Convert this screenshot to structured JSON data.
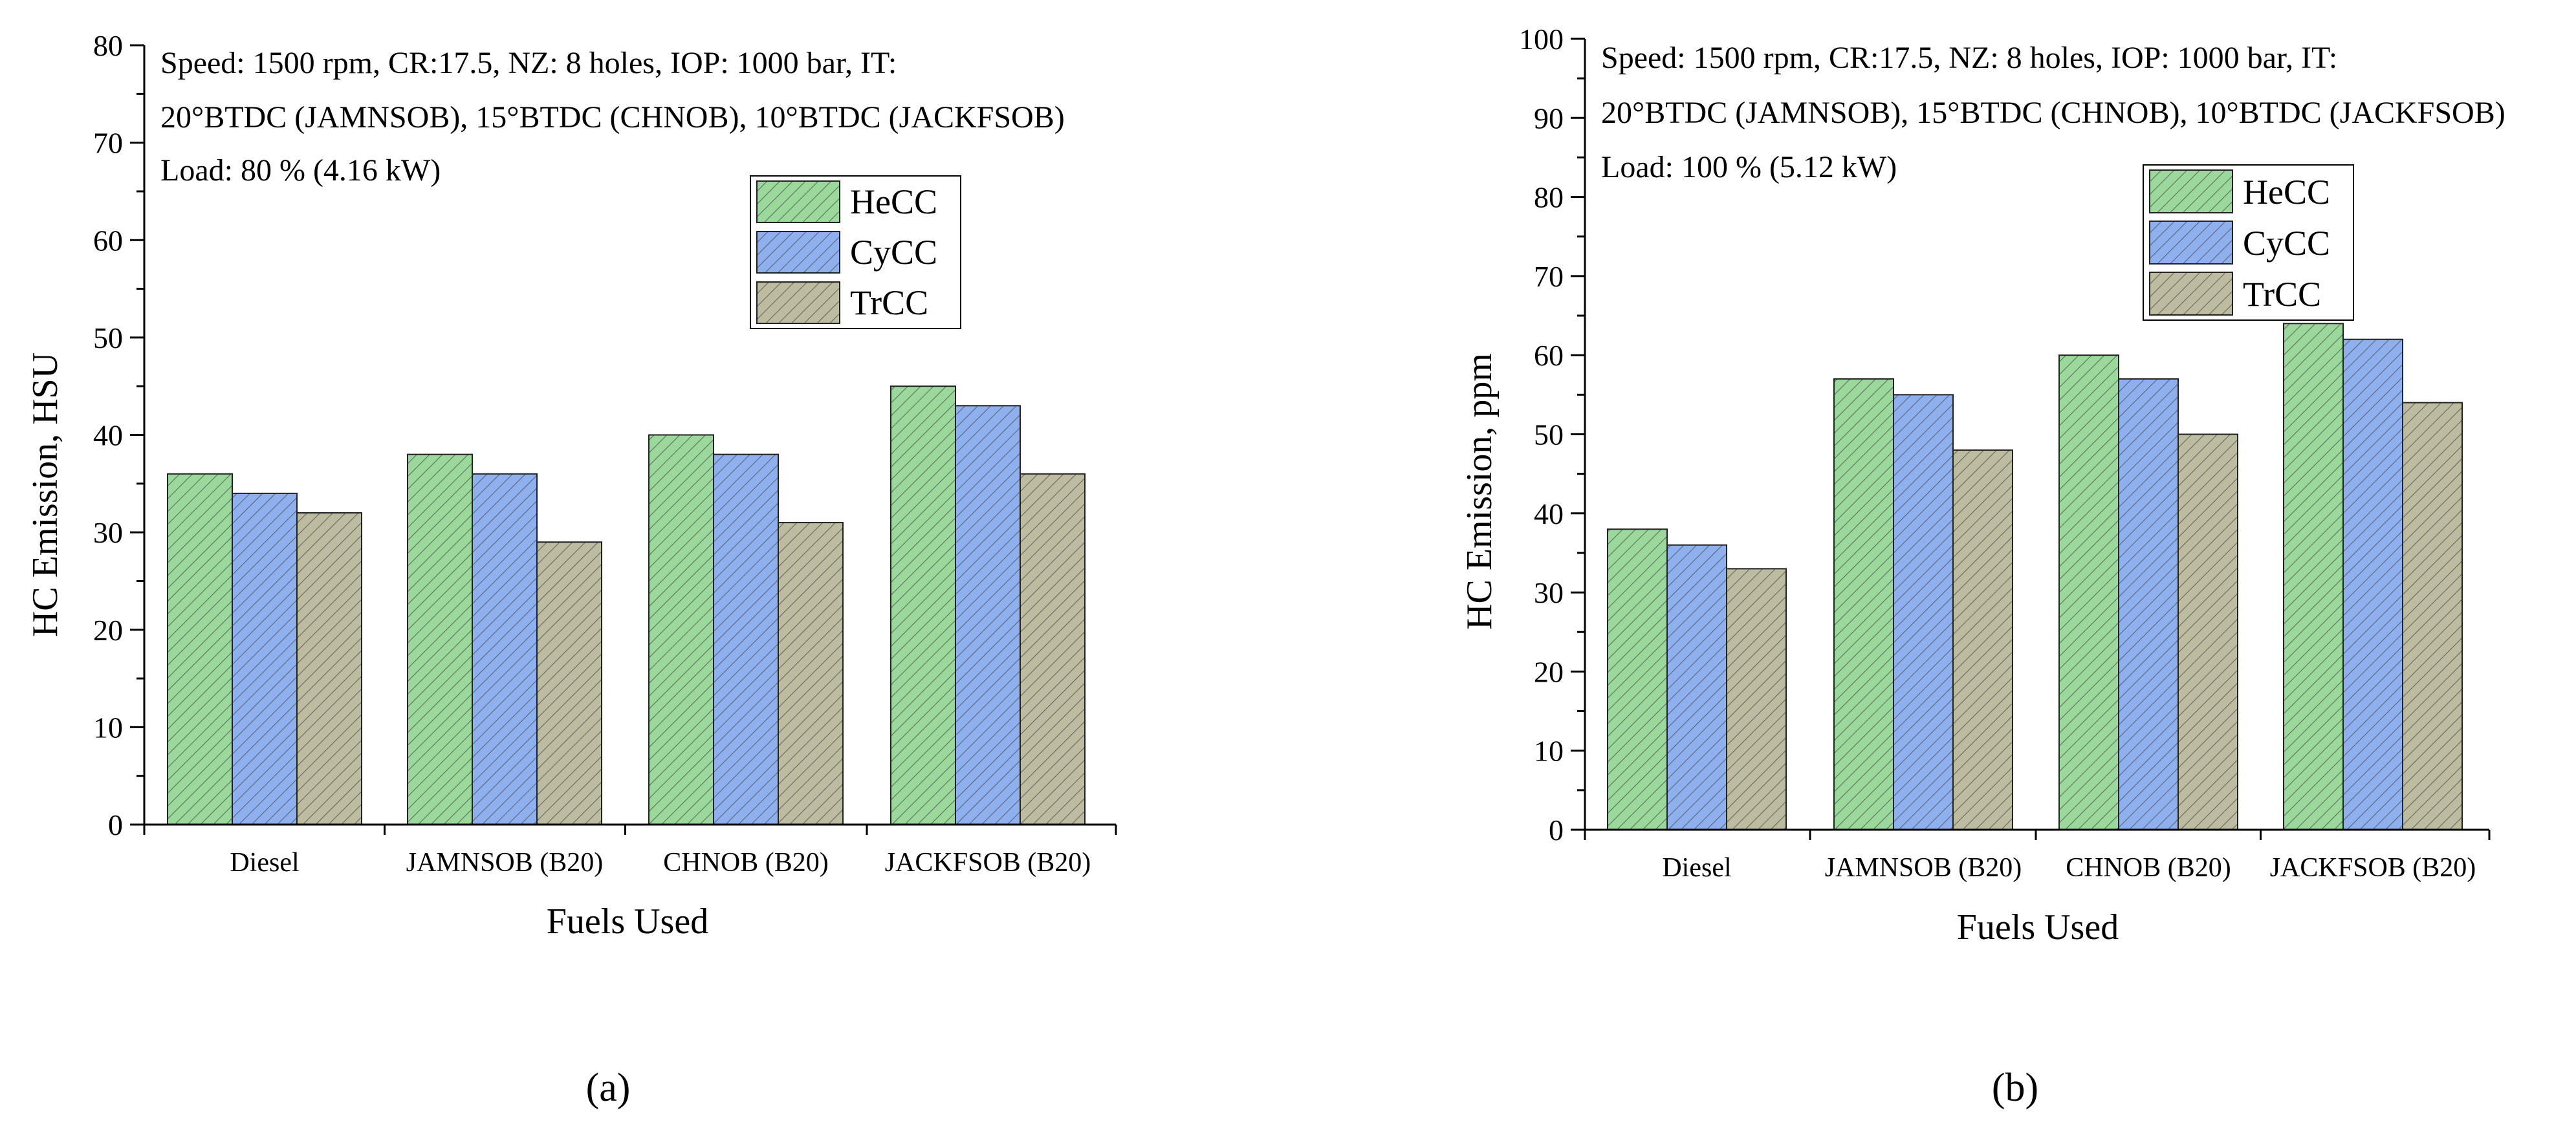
{
  "chart_data": [
    {
      "type": "bar",
      "panel_label": "(a)",
      "annotation": {
        "line1": "Speed: 1500 rpm, CR:17.5, NZ: 8 holes, IOP: 1000 bar, IT:",
        "line2": "20°BTDC (JAMNSOB), 15°BTDC (CHNOB), 10°BTDC (JACKFSOB)",
        "line3": "Load: 80 %  (4.16 kW)"
      },
      "xlabel": "Fuels Used",
      "ylabel": "HC Emission, HSU",
      "ylim": [
        0,
        80
      ],
      "yticks": [
        "0",
        "10",
        "20",
        "30",
        "40",
        "50",
        "60",
        "70",
        "80"
      ],
      "categories": [
        "Diesel",
        "JAMNSOB (B20)",
        "CHNOB (B20)",
        "JACKFSOB (B20)"
      ],
      "legend_position": "upper-right",
      "series": [
        {
          "name": "HeCC",
          "color": "#9bd89b",
          "values": [
            36,
            38,
            40,
            45
          ]
        },
        {
          "name": "CyCC",
          "color": "#8fb0ee",
          "values": [
            34,
            36,
            38,
            43
          ]
        },
        {
          "name": "TrCC",
          "color": "#bdbba0",
          "values": [
            32,
            29,
            31,
            36
          ]
        }
      ]
    },
    {
      "type": "bar",
      "panel_label": "(b)",
      "annotation": {
        "line1": "Speed: 1500 rpm, CR:17.5, NZ: 8 holes, IOP: 1000 bar, IT:",
        "line2": "20°BTDC (JAMNSOB), 15°BTDC (CHNOB), 10°BTDC (JACKFSOB)",
        "line3": "Load: 100 %  (5.12 kW)"
      },
      "xlabel": "Fuels Used",
      "ylabel": "HC Emission, ppm",
      "ylim": [
        0,
        100
      ],
      "yticks": [
        "0",
        "10",
        "20",
        "30",
        "40",
        "50",
        "60",
        "70",
        "80",
        "90",
        "100"
      ],
      "categories": [
        "Diesel",
        "JAMNSOB (B20)",
        "CHNOB (B20)",
        "JACKFSOB (B20)"
      ],
      "legend_position": "upper-right",
      "series": [
        {
          "name": "HeCC",
          "color": "#9bd89b",
          "values": [
            38,
            57,
            60,
            64
          ]
        },
        {
          "name": "CyCC",
          "color": "#8fb0ee",
          "values": [
            36,
            55,
            57,
            62
          ]
        },
        {
          "name": "TrCC",
          "color": "#bdbba0",
          "values": [
            33,
            48,
            50,
            54
          ]
        }
      ]
    }
  ]
}
